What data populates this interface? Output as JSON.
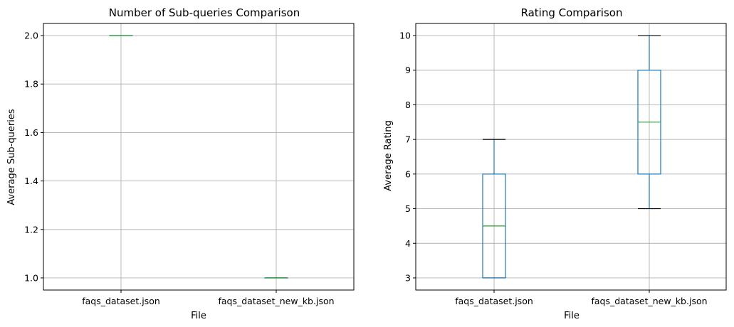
{
  "chart_data": [
    {
      "type": "box",
      "title": "Number of Sub-queries Comparison",
      "xlabel": "File",
      "ylabel": "Average Sub-queries",
      "categories": [
        "faqs_dataset.json",
        "faqs_dataset_new_kb.json"
      ],
      "ylim": [
        0.95,
        2.05
      ],
      "yticks": [
        "1.0",
        "1.2",
        "1.4",
        "1.6",
        "1.8",
        "2.0"
      ],
      "grid": true,
      "boxes": [
        {
          "min": 2.0,
          "q1": 2.0,
          "median": 2.0,
          "q3": 2.0,
          "max": 2.0
        },
        {
          "min": 1.0,
          "q1": 1.0,
          "median": 1.0,
          "q3": 1.0,
          "max": 1.0
        }
      ]
    },
    {
      "type": "box",
      "title": "Rating Comparison",
      "xlabel": "File",
      "ylabel": "Average Rating",
      "categories": [
        "faqs_dataset.json",
        "faqs_dataset_new_kb.json"
      ],
      "ylim": [
        2.65,
        10.35
      ],
      "yticks": [
        "3",
        "4",
        "5",
        "6",
        "7",
        "8",
        "9",
        "10"
      ],
      "grid": true,
      "boxes": [
        {
          "min": 3,
          "q1": 3,
          "median": 4.5,
          "q3": 6,
          "max": 7
        },
        {
          "min": 5,
          "q1": 6,
          "median": 7.5,
          "q3": 9,
          "max": 10
        }
      ]
    }
  ]
}
